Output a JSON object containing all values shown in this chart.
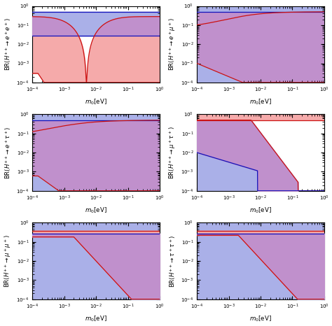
{
  "xlabel": "$m_0$[eV]",
  "xmin": 0.0001,
  "xmax": 1.0,
  "ymin": 0.0001,
  "ymax": 1.0,
  "blue_fill_color": "#aab0e8",
  "red_fill_color": "#f5aaaa",
  "purple_fill_color": "#c090cc",
  "blue_line_color": "#1111bb",
  "red_line_color": "#cc1111",
  "lw": 0.9,
  "fs_label": 6.2,
  "fs_tick": 5.0
}
